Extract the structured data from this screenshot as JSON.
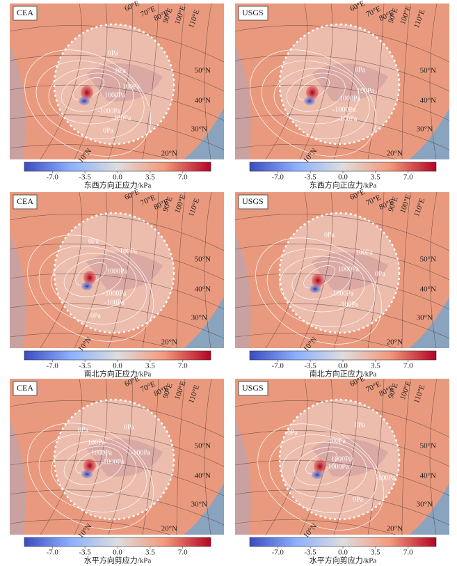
{
  "panels": [
    {
      "source": "CEA",
      "contour_labels": [
        "0Pa",
        "0Pa",
        "100Pa",
        "1000Pa",
        "-1000Pa",
        "-100Pa",
        "0Pa"
      ]
    },
    {
      "source": "USGS",
      "contour_labels": [
        "0Pa",
        "100Pa",
        "1000Pa",
        "-1000Pa",
        "-100Pa"
      ]
    },
    {
      "source": "CEA",
      "contour_labels": [
        "0Pa",
        "100Pa",
        "1000Pa",
        "-1000Pa",
        "-100Pa",
        "0Pa"
      ]
    },
    {
      "source": "USGS",
      "contour_labels": [
        "0Pa",
        "100Pa",
        "1000Pa",
        "0Pa",
        "-1000Pa",
        "-100Pa"
      ]
    },
    {
      "source": "CEA",
      "contour_labels": [
        "0Pa",
        "0Pa",
        "100Pa",
        "1000Pa",
        "-100Pa",
        "-1000Pa"
      ]
    },
    {
      "source": "USGS",
      "contour_labels": [
        "0Pa",
        "0Pa",
        "100Pa",
        "1000Pa",
        "-1000Pa",
        "-100Pa",
        "0Pa"
      ]
    }
  ],
  "graticule": {
    "longitudes": [
      "60°E",
      "70°E",
      "80°E",
      "90°E",
      "100°E",
      "110°E"
    ],
    "latitudes": [
      "50°N",
      "40°N",
      "30°N",
      "20°N",
      "10°N"
    ]
  },
  "colorbars": [
    {
      "title": "东西方向正应力/kPa",
      "lim": [
        -10,
        10
      ],
      "ticks": [
        {
          "value": -7,
          "label": "-7.0"
        },
        -3.5,
        {
          "value": 0,
          "label": "0.0"
        },
        3.5,
        {
          "value": 7,
          "label": "7.0"
        }
      ]
    },
    {
      "title": "南北方向正应力/kPa",
      "lim": [
        -10,
        10
      ],
      "ticks": [
        {
          "value": -7,
          "label": "-7.0"
        },
        -3.5,
        {
          "value": 0,
          "label": "0.0"
        },
        3.5,
        {
          "value": 7,
          "label": "7.0"
        }
      ]
    },
    {
      "title": "水平方向剪应力/kPa",
      "lim": [
        -10,
        10
      ],
      "ticks": [
        {
          "value": -7,
          "label": "-7.0"
        },
        -3.5,
        {
          "value": 0,
          "label": "0.0"
        },
        3.5,
        {
          "value": 7,
          "label": "7.0"
        }
      ]
    }
  ]
}
